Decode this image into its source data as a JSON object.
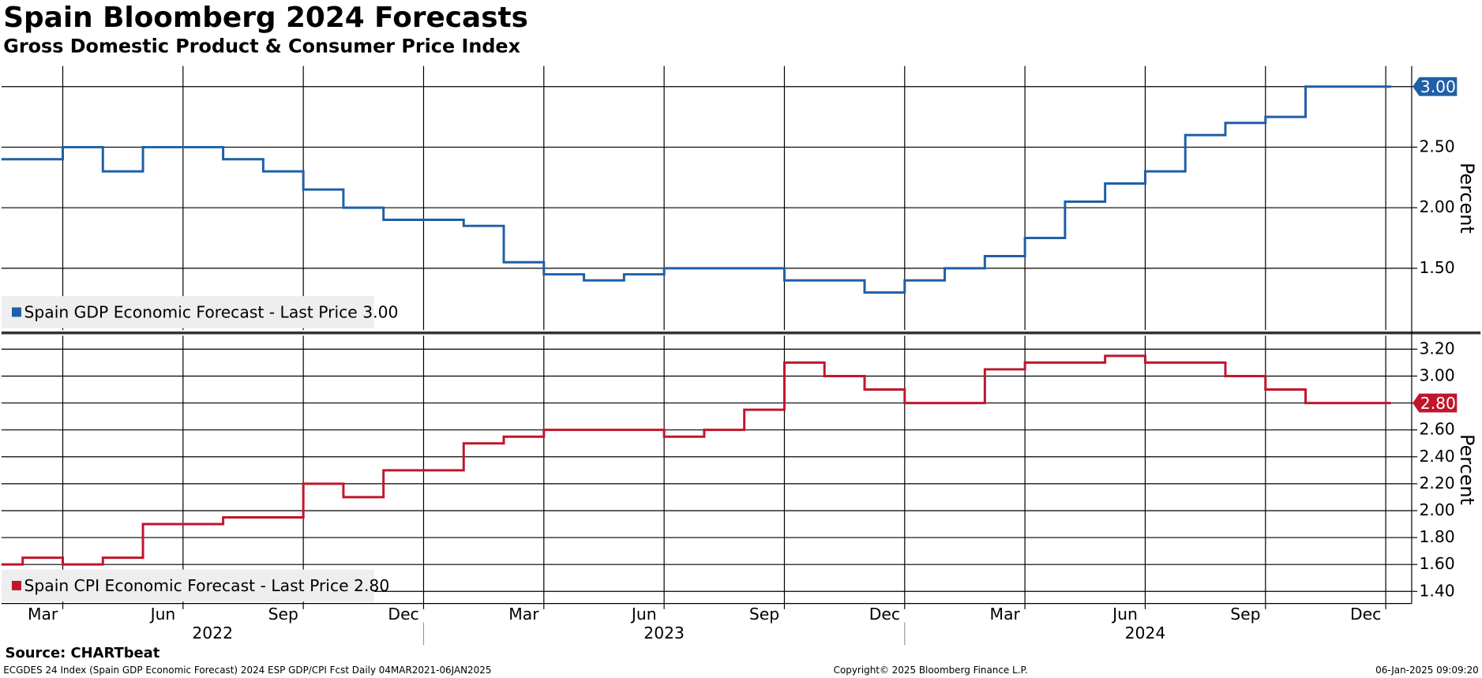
{
  "title": "Spain Bloomberg 2024 Forecasts",
  "subtitle": "Gross Domestic Product & Consumer Price Index",
  "x_axis": {
    "ticks": [
      {
        "value": "2022-03",
        "label": "Mar"
      },
      {
        "value": "2022-06",
        "label": "Jun"
      },
      {
        "value": "2022-09",
        "label": "Sep"
      },
      {
        "value": "2022-12",
        "label": "Dec"
      },
      {
        "value": "2023-03",
        "label": "Mar"
      },
      {
        "value": "2023-06",
        "label": "Jun"
      },
      {
        "value": "2023-09",
        "label": "Sep"
      },
      {
        "value": "2023-12",
        "label": "Dec"
      },
      {
        "value": "2024-03",
        "label": "Mar"
      },
      {
        "value": "2024-06",
        "label": "Jun"
      },
      {
        "value": "2024-09",
        "label": "Sep"
      },
      {
        "value": "2024-12",
        "label": "Dec"
      }
    ],
    "years": [
      "2022",
      "2023",
      "2024"
    ]
  },
  "chart_data": [
    {
      "type": "line",
      "y_label": "Percent",
      "x": [
        "2022-02",
        "2022-03",
        "2022-04",
        "2022-05",
        "2022-06",
        "2022-07",
        "2022-08",
        "2022-09",
        "2022-10",
        "2022-11",
        "2022-12",
        "2023-01",
        "2023-02",
        "2023-03",
        "2023-04",
        "2023-05",
        "2023-06",
        "2023-07",
        "2023-08",
        "2023-09",
        "2023-10",
        "2023-11",
        "2023-12",
        "2024-01",
        "2024-02",
        "2024-03",
        "2024-04",
        "2024-05",
        "2024-06",
        "2024-07",
        "2024-08",
        "2024-09",
        "2024-10",
        "2024-11",
        "2024-12",
        "2025-01"
      ],
      "series": [
        {
          "name": "Spain GDP Economic Forecast - Last Price 3.00",
          "color": "#1f5fa6",
          "last_label": "3.00",
          "values": [
            2.4,
            2.4,
            2.5,
            2.3,
            2.5,
            2.5,
            2.4,
            2.3,
            2.15,
            2.0,
            1.9,
            1.9,
            1.85,
            1.55,
            1.45,
            1.4,
            1.45,
            1.5,
            1.5,
            1.5,
            1.4,
            1.4,
            1.3,
            1.4,
            1.5,
            1.6,
            1.75,
            2.05,
            2.2,
            2.3,
            2.6,
            2.7,
            2.75,
            3.0,
            3.0,
            3.0
          ]
        }
      ],
      "ylim": [
        0.99,
        3.17
      ],
      "yticks": [
        {
          "value": 1.5,
          "label": "1.50"
        },
        {
          "value": 2.0,
          "label": "2.00"
        },
        {
          "value": 2.5,
          "label": "2.50"
        },
        {
          "value": 3.0,
          "label": "3.00"
        }
      ],
      "grid": true
    },
    {
      "type": "line",
      "y_label": "Percent",
      "x": [
        "2022-02",
        "2022-03",
        "2022-04",
        "2022-05",
        "2022-06",
        "2022-07",
        "2022-08",
        "2022-09",
        "2022-10",
        "2022-11",
        "2022-12",
        "2023-01",
        "2023-02",
        "2023-03",
        "2023-04",
        "2023-05",
        "2023-06",
        "2023-07",
        "2023-08",
        "2023-09",
        "2023-10",
        "2023-11",
        "2023-12",
        "2024-01",
        "2024-02",
        "2024-03",
        "2024-04",
        "2024-05",
        "2024-06",
        "2024-07",
        "2024-08",
        "2024-09",
        "2024-10",
        "2024-11",
        "2024-12",
        "2025-01"
      ],
      "series": [
        {
          "name": "Spain CPI Economic Forecast - Last Price 2.80",
          "color": "#c0162c",
          "last_label": "2.80",
          "values": [
            1.6,
            1.65,
            1.6,
            1.65,
            1.9,
            1.9,
            1.95,
            1.95,
            2.2,
            2.1,
            2.3,
            2.3,
            2.5,
            2.55,
            2.6,
            2.6,
            2.6,
            2.55,
            2.6,
            2.75,
            3.1,
            3.0,
            2.9,
            2.8,
            2.8,
            3.05,
            3.1,
            3.1,
            3.15,
            3.1,
            3.1,
            3.0,
            2.9,
            2.8,
            2.8,
            2.8
          ]
        }
      ],
      "ylim": [
        1.31,
        3.3
      ],
      "yticks": [
        {
          "value": 1.4,
          "label": "1.40"
        },
        {
          "value": 1.6,
          "label": "1.60"
        },
        {
          "value": 1.8,
          "label": "1.80"
        },
        {
          "value": 2.0,
          "label": "2.00"
        },
        {
          "value": 2.2,
          "label": "2.20"
        },
        {
          "value": 2.4,
          "label": "2.40"
        },
        {
          "value": 2.6,
          "label": "2.60"
        },
        {
          "value": 2.8,
          "label": "2.80"
        },
        {
          "value": 3.0,
          "label": "3.00"
        },
        {
          "value": 3.2,
          "label": "3.20"
        }
      ],
      "grid": true
    }
  ],
  "footer": {
    "source": "Source: CHARTbeat",
    "index_line": "ECGDES 24 Index (Spain GDP Economic Forecast) 2024 ESP GDP/CPI Fcst  Daily 04MAR2021-06JAN2025",
    "copyright": "Copyright© 2025 Bloomberg Finance L.P.",
    "timestamp": "06-Jan-2025 09:09:20"
  }
}
